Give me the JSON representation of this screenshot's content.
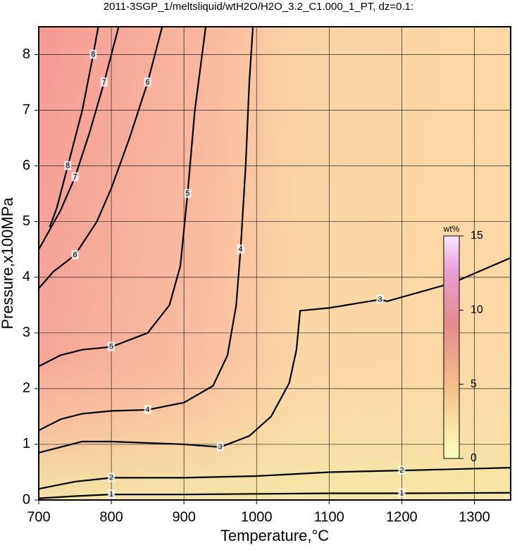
{
  "chart_data": {
    "type": "contour",
    "title": "2011-3SGP_1/meltsliquid/wtH2O/H2O_3.2_C1.000_1_PT, dz=0.1:",
    "x_label": "Temperature,°C",
    "y_label": "Pressure,x100MPa",
    "xlim": [
      700,
      1350
    ],
    "ylim": [
      0,
      8.5
    ],
    "xticks": [
      700,
      800,
      900,
      1000,
      1100,
      1200,
      1300
    ],
    "yticks": [
      0,
      1,
      2,
      3,
      4,
      5,
      6,
      7,
      8
    ],
    "grid": true,
    "contours": [
      {
        "level": 1,
        "x": [
          700,
          750,
          800,
          900,
          1000,
          1100,
          1200,
          1350
        ],
        "y": [
          0.03,
          0.07,
          0.1,
          0.1,
          0.11,
          0.12,
          0.12,
          0.13
        ]
      },
      {
        "level": 2,
        "x": [
          700,
          750,
          800,
          900,
          1000,
          1100,
          1200,
          1350
        ],
        "y": [
          0.2,
          0.33,
          0.4,
          0.4,
          0.43,
          0.5,
          0.53,
          0.58
        ]
      },
      {
        "level": 3,
        "x": [
          700,
          730,
          760,
          800,
          900,
          950,
          990,
          1020,
          1045,
          1055,
          1060,
          1100,
          1170,
          1180,
          1270,
          1350
        ],
        "y": [
          0.85,
          0.95,
          1.05,
          1.05,
          1.0,
          0.95,
          1.15,
          1.5,
          2.1,
          2.7,
          3.4,
          3.45,
          3.6,
          3.57,
          3.9,
          4.35
        ]
      },
      {
        "level": 4,
        "x": [
          700,
          730,
          760,
          800,
          850,
          900,
          940,
          960,
          972,
          978,
          985,
          990,
          995
        ],
        "y": [
          1.25,
          1.45,
          1.55,
          1.6,
          1.62,
          1.75,
          2.05,
          2.6,
          3.5,
          4.5,
          6.0,
          7.5,
          8.5
        ]
      },
      {
        "level": 5,
        "x": [
          700,
          730,
          760,
          800,
          850,
          880,
          895,
          905,
          915,
          930
        ],
        "y": [
          2.4,
          2.6,
          2.7,
          2.75,
          3.0,
          3.5,
          4.2,
          5.5,
          7.0,
          8.5
        ]
      },
      {
        "level": 6,
        "x": [
          700,
          720,
          750,
          780,
          800,
          825,
          850,
          870
        ],
        "y": [
          3.8,
          4.1,
          4.4,
          5.0,
          5.6,
          6.5,
          7.5,
          8.5
        ]
      },
      {
        "level": 7,
        "x": [
          700,
          730,
          750,
          770,
          790,
          810
        ],
        "y": [
          4.5,
          5.2,
          5.8,
          6.6,
          7.5,
          8.5
        ]
      },
      {
        "level": 8,
        "x": [
          715,
          725,
          740,
          760,
          775,
          782
        ],
        "y": [
          4.9,
          5.25,
          6.0,
          7.0,
          8.0,
          8.5
        ]
      }
    ],
    "colorbar": {
      "label": "wt%",
      "lim": [
        0,
        15
      ],
      "ticks": [
        0,
        5,
        10,
        15
      ]
    }
  }
}
